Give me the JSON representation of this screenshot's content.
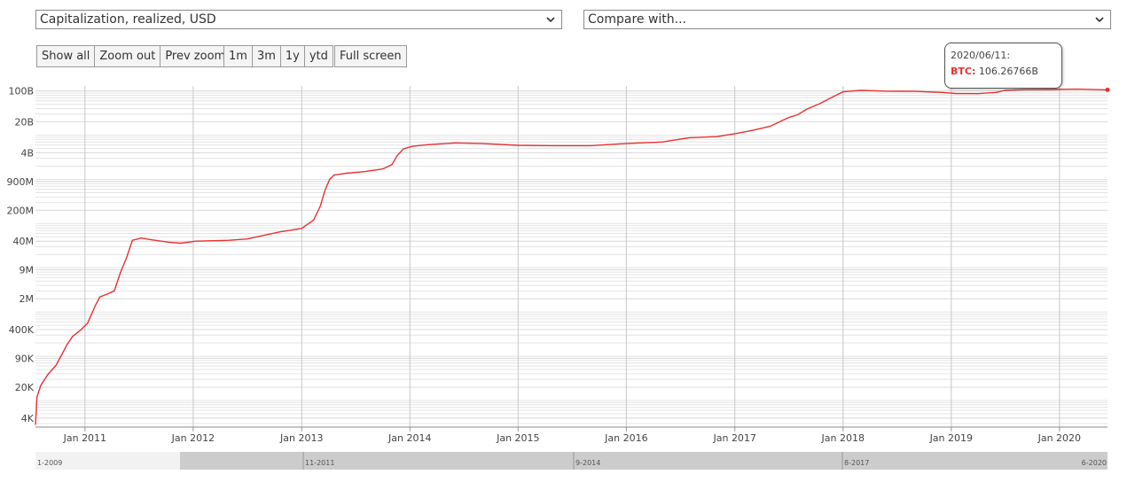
{
  "controls": {
    "metric_select": "Capitalization, realized, USD",
    "compare_select": "Compare with...",
    "buttons_zoom": [
      "Show all",
      "Zoom out",
      "Prev zoom"
    ],
    "buttons_range": [
      "1m",
      "3m",
      "1y",
      "ytd"
    ],
    "button_fullscreen": "Full screen"
  },
  "tooltip": {
    "date": "2020/06/11:",
    "series": "BTC",
    "value": "106.26766B"
  },
  "navigator": {
    "labels": [
      "1-2009",
      "11-2011",
      "9-2014",
      "8-2017",
      "6-2020"
    ]
  },
  "colors": {
    "line": "#e8312f",
    "grid": "#e4e4e4",
    "vgrid": "#c8c8c8",
    "navigator_fill": "#cccccc"
  },
  "chart_data": {
    "type": "line",
    "xlabel": "",
    "ylabel": "",
    "y_scale": "log",
    "ylim": [
      2500,
      130000000000
    ],
    "xlim": [
      "2010-07-18",
      "2020-06-11"
    ],
    "y_ticks": [
      {
        "value": 4000,
        "label": "4K"
      },
      {
        "value": 20000,
        "label": "20K"
      },
      {
        "value": 90000,
        "label": "90K"
      },
      {
        "value": 400000,
        "label": "400K"
      },
      {
        "value": 2000000,
        "label": "2M"
      },
      {
        "value": 9000000,
        "label": "9M"
      },
      {
        "value": 40000000,
        "label": "40M"
      },
      {
        "value": 200000000,
        "label": "200M"
      },
      {
        "value": 900000000,
        "label": "900M"
      },
      {
        "value": 4000000000,
        "label": "4B"
      },
      {
        "value": 20000000000,
        "label": "20B"
      },
      {
        "value": 100000000000,
        "label": "100B"
      }
    ],
    "x_ticks": [
      {
        "date": "2011-01-01",
        "label": "Jan 2011"
      },
      {
        "date": "2012-01-01",
        "label": "Jan 2012"
      },
      {
        "date": "2013-01-01",
        "label": "Jan 2013"
      },
      {
        "date": "2014-01-01",
        "label": "Jan 2014"
      },
      {
        "date": "2015-01-01",
        "label": "Jan 2015"
      },
      {
        "date": "2016-01-01",
        "label": "Jan 2016"
      },
      {
        "date": "2017-01-01",
        "label": "Jan 2017"
      },
      {
        "date": "2018-01-01",
        "label": "Jan 2018"
      },
      {
        "date": "2019-01-01",
        "label": "Jan 2019"
      },
      {
        "date": "2020-01-01",
        "label": "Jan 2020"
      }
    ],
    "grid": true,
    "legend": "none",
    "series": [
      {
        "name": "BTC",
        "color": "#e8312f",
        "points": [
          [
            "2010-07-18",
            2800
          ],
          [
            "2010-07-23",
            12000
          ],
          [
            "2010-08-05",
            22000
          ],
          [
            "2010-08-28",
            38000
          ],
          [
            "2010-09-25",
            62000
          ],
          [
            "2010-10-15",
            110000
          ],
          [
            "2010-11-01",
            180000
          ],
          [
            "2010-11-20",
            280000
          ],
          [
            "2010-12-15",
            380000
          ],
          [
            "2011-01-10",
            560000
          ],
          [
            "2011-02-05",
            1400000
          ],
          [
            "2011-02-20",
            2200000
          ],
          [
            "2011-03-20",
            2600000
          ],
          [
            "2011-04-10",
            3000000
          ],
          [
            "2011-05-01",
            8000000
          ],
          [
            "2011-05-20",
            16000000
          ],
          [
            "2011-06-10",
            42000000
          ],
          [
            "2011-07-10",
            47000000
          ],
          [
            "2011-08-15",
            43000000
          ],
          [
            "2011-10-10",
            38000000
          ],
          [
            "2011-11-20",
            36000000
          ],
          [
            "2012-01-10",
            40000000
          ],
          [
            "2012-05-01",
            42000000
          ],
          [
            "2012-07-01",
            45000000
          ],
          [
            "2012-09-10",
            57000000
          ],
          [
            "2012-10-20",
            65000000
          ],
          [
            "2013-01-01",
            78000000
          ],
          [
            "2013-02-10",
            120000000
          ],
          [
            "2013-03-05",
            250000000
          ],
          [
            "2013-03-20",
            550000000
          ],
          [
            "2013-04-05",
            1000000000
          ],
          [
            "2013-04-20",
            1250000000
          ],
          [
            "2013-06-01",
            1380000000
          ],
          [
            "2013-08-01",
            1500000000
          ],
          [
            "2013-10-01",
            1720000000
          ],
          [
            "2013-11-01",
            2150000000
          ],
          [
            "2013-11-20",
            3500000000
          ],
          [
            "2013-12-10",
            4900000000
          ],
          [
            "2014-01-10",
            5600000000
          ],
          [
            "2014-03-01",
            6100000000
          ],
          [
            "2014-06-01",
            6700000000
          ],
          [
            "2014-09-01",
            6500000000
          ],
          [
            "2015-01-01",
            5900000000
          ],
          [
            "2015-05-01",
            5800000000
          ],
          [
            "2015-09-01",
            5800000000
          ],
          [
            "2016-01-01",
            6500000000
          ],
          [
            "2016-05-01",
            7000000000
          ],
          [
            "2016-08-01",
            8800000000
          ],
          [
            "2016-11-01",
            9300000000
          ],
          [
            "2017-01-01",
            10800000000
          ],
          [
            "2017-03-01",
            12800000000
          ],
          [
            "2017-05-01",
            16000000000
          ],
          [
            "2017-07-01",
            25000000000
          ],
          [
            "2017-08-01",
            29000000000
          ],
          [
            "2017-09-01",
            39000000000
          ],
          [
            "2017-10-15",
            52000000000
          ],
          [
            "2017-11-25",
            72000000000
          ],
          [
            "2018-01-01",
            96000000000
          ],
          [
            "2018-03-01",
            103000000000
          ],
          [
            "2018-06-01",
            99000000000
          ],
          [
            "2018-09-01",
            98000000000
          ],
          [
            "2018-12-01",
            93000000000
          ],
          [
            "2019-01-15",
            88000000000
          ],
          [
            "2019-04-01",
            87000000000
          ],
          [
            "2019-06-01",
            93000000000
          ],
          [
            "2019-07-01",
            103000000000
          ],
          [
            "2019-09-01",
            107000000000
          ],
          [
            "2019-12-01",
            108000000000
          ],
          [
            "2020-03-01",
            110000000000
          ],
          [
            "2020-06-11",
            106267660000
          ]
        ]
      }
    ]
  }
}
